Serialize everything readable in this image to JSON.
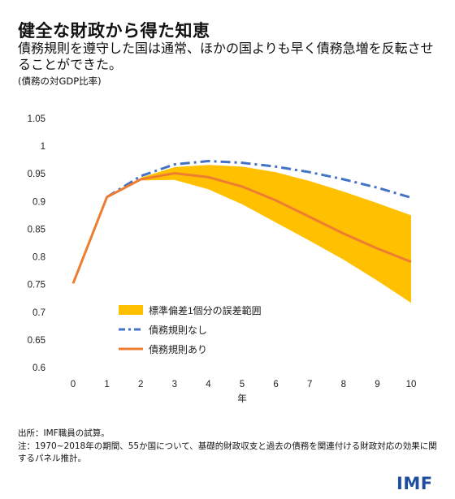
{
  "header": {
    "title": "健全な財政から得た知恵",
    "subtitle": "債務規則を遵守した国は通常、ほかの国よりも早く債務急増を反転させることができた。",
    "unit": "(債務の対GDP比率)"
  },
  "footer": {
    "source": "出所：IMF職員の試算。",
    "note": "注：1970~2018年の期間、55か国について、基礎的財政収支と過去の債務を関連付ける財政対応の効果に関するパネル推計。",
    "logo": "IMF"
  },
  "colors": {
    "band": "#FFC000",
    "no_rule": "#4472C4",
    "with_rule": "#ED7D31"
  },
  "chart_data": {
    "type": "line",
    "xlabel": "年",
    "ylabel": "",
    "x": [
      0,
      1,
      2,
      3,
      4,
      5,
      6,
      7,
      8,
      9,
      10
    ],
    "ylim": [
      0.6,
      1.05
    ],
    "yticks": [
      "0.6",
      "0.65",
      "0.7",
      "0.75",
      "0.8",
      "0.85",
      "0.9",
      "0.95",
      "1",
      "1.05"
    ],
    "xticks": [
      "0",
      "1",
      "2",
      "3",
      "4",
      "5",
      "6",
      "7",
      "8",
      "9",
      "10"
    ],
    "band": {
      "name": "標準偏差1個分の誤差範囲",
      "x": [
        2,
        3,
        4,
        5,
        6,
        7,
        8,
        9,
        10
      ],
      "upper": [
        0.943,
        0.962,
        0.966,
        0.963,
        0.953,
        0.937,
        0.918,
        0.897,
        0.875
      ],
      "lower": [
        0.938,
        0.939,
        0.922,
        0.895,
        0.862,
        0.829,
        0.795,
        0.757,
        0.717
      ]
    },
    "series": [
      {
        "name": "債務規則なし",
        "style": "dash-dot",
        "x": [
          1,
          2,
          3,
          4,
          5,
          6,
          7,
          8,
          9,
          10
        ],
        "values": [
          0.908,
          0.946,
          0.967,
          0.973,
          0.97,
          0.963,
          0.953,
          0.94,
          0.925,
          0.907
        ]
      },
      {
        "name": "債務規則あり",
        "style": "solid",
        "x": [
          0,
          1,
          2,
          3,
          4,
          5,
          6,
          7,
          8,
          9,
          10
        ],
        "values": [
          0.752,
          0.908,
          0.94,
          0.951,
          0.944,
          0.927,
          0.902,
          0.872,
          0.842,
          0.815,
          0.791
        ]
      }
    ],
    "legend": "bottom-left"
  }
}
